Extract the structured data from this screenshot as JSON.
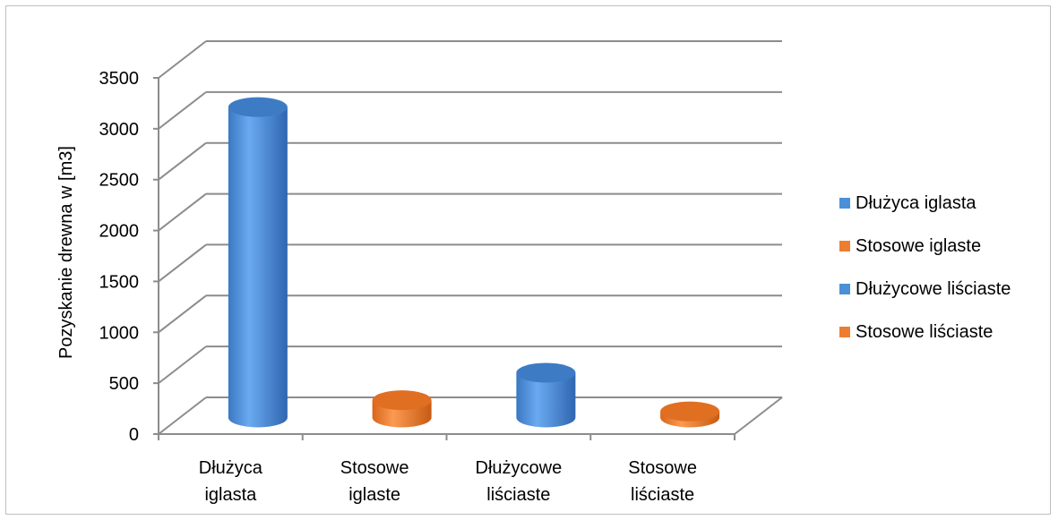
{
  "chart_data": {
    "type": "bar",
    "style": "3d-cylinder",
    "categories": [
      "Dłużyca iglasta",
      "Stosowe iglaste",
      "Dłużycowe liściaste",
      "Stosowe liściaste"
    ],
    "category_labels": [
      [
        "Dłużyca",
        "iglasta"
      ],
      [
        "Stosowe",
        "iglaste"
      ],
      [
        "Dłużycowe",
        "liściaste"
      ],
      [
        "Stosowe",
        "liściaste"
      ]
    ],
    "values": [
      3050,
      170,
      440,
      60
    ],
    "bar_colors": [
      "#4a90d9",
      "#ed7d31",
      "#4a90d9",
      "#ed7d31"
    ],
    "ylabel": "Pozyskanie drewna w [m3]",
    "ylim": [
      0,
      3500
    ],
    "yticks": [
      "0",
      "500",
      "1000",
      "1500",
      "2000",
      "2500",
      "3000",
      "3500"
    ],
    "grid": true,
    "legend_position": "right",
    "legend": [
      {
        "label": "Dłużyca iglasta",
        "color": "#4a90d9"
      },
      {
        "label": "Stosowe iglaste",
        "color": "#ed7d31"
      },
      {
        "label": "Dłużycowe liściaste",
        "color": "#4a90d9"
      },
      {
        "label": "Stosowe liściaste",
        "color": "#ed7d31"
      }
    ]
  }
}
